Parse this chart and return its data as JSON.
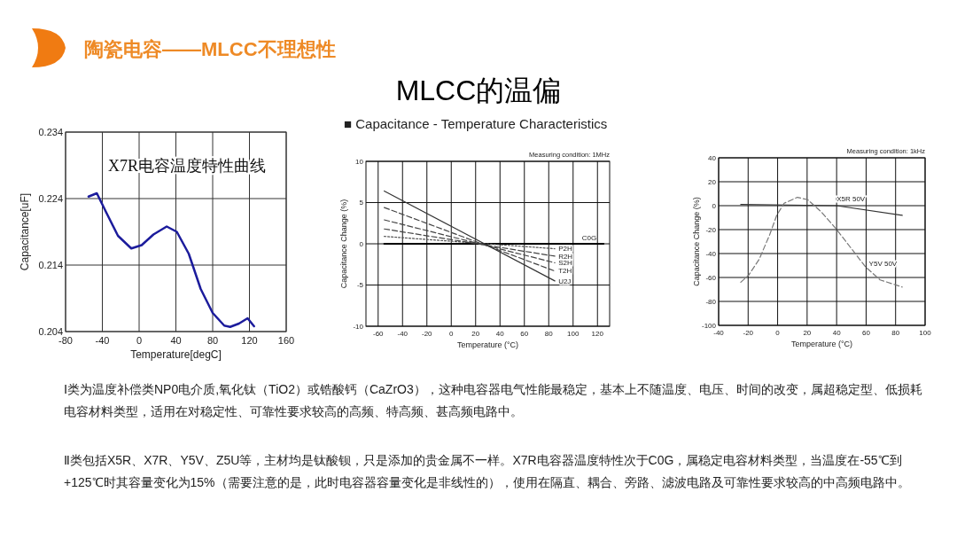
{
  "chart_data": [
    {
      "type": "other",
      "title": "陶瓷电容——MLCC不理想性",
      "subtitle": "MLCC的温偏"
    },
    {
      "type": "line",
      "title": "X7R电容温度特性曲线",
      "xlabel": "Temperature[degC]",
      "ylabel": "Capacitance[uF]",
      "color": "#1c1c9c",
      "x": [
        -55,
        -46,
        -35.7,
        -23,
        -8.5,
        2.8,
        15.6,
        30,
        41,
        54,
        67,
        80,
        92.6,
        99,
        108.6,
        118,
        125
      ],
      "values": [
        0.2243,
        0.2248,
        0.2219,
        0.2184,
        0.2165,
        0.217,
        0.2186,
        0.2198,
        0.219,
        0.2157,
        0.2104,
        0.2068,
        0.2049,
        0.2047,
        0.2052,
        0.206,
        0.2048
      ],
      "xlim": [
        -80,
        160
      ],
      "ylim": [
        0.204,
        0.234
      ],
      "xticks": [
        -80,
        -40,
        0,
        40,
        80,
        120,
        160
      ],
      "yticks": [
        0.204,
        0.214,
        0.224,
        0.234
      ],
      "grid": true
    },
    {
      "type": "line",
      "title": "■ Capacitance - Temperature Characteristics",
      "annotations": [
        "Measuring condition: 1MHz"
      ],
      "xlabel": "Temperature (°C)",
      "ylabel": "Capacitance Change (%)",
      "series": [
        {
          "name": "C0G",
          "color": "#000000",
          "line_style": "solid",
          "x": [
            -55,
            125
          ],
          "values": [
            0,
            0
          ]
        },
        {
          "name": "P2H",
          "color": "#555555",
          "line_style": "dotted",
          "x": [
            -55,
            85
          ],
          "values": [
            0.9,
            -0.6
          ]
        },
        {
          "name": "R2H",
          "color": "#444444",
          "line_style": "dashed",
          "x": [
            -55,
            85
          ],
          "values": [
            1.8,
            -1.5
          ]
        },
        {
          "name": "S2H",
          "color": "#444444",
          "line_style": "dashed",
          "x": [
            -55,
            85
          ],
          "values": [
            2.9,
            -2.3
          ]
        },
        {
          "name": "T2H",
          "color": "#444444",
          "line_style": "dashed",
          "x": [
            -55,
            85
          ],
          "values": [
            4.4,
            -3.3
          ]
        },
        {
          "name": "U2J",
          "color": "#333333",
          "line_style": "solid",
          "x": [
            -55,
            85
          ],
          "values": [
            6.4,
            -4.5
          ]
        }
      ],
      "xlim": [
        -70,
        130
      ],
      "ylim": [
        -10,
        10
      ],
      "xticks": [
        -60,
        -40,
        -20,
        0,
        20,
        40,
        60,
        80,
        100,
        120
      ],
      "yticks": [
        -10,
        -5,
        0,
        5,
        10
      ],
      "grid": true
    },
    {
      "type": "line",
      "annotations": [
        "Measuring condition: 1kHz"
      ],
      "xlabel": "Temperature (°C)",
      "ylabel": "Capacitance Change (%)",
      "series": [
        {
          "name": "X5R 50V",
          "color": "#333333",
          "line_style": "solid",
          "x": [
            -25,
            40,
            84.5
          ],
          "values": [
            1,
            0,
            -8
          ]
        },
        {
          "name": "Y5V 50V",
          "color": "#777777",
          "line_style": "dashed",
          "x": [
            -25,
            -19.6,
            -12.6,
            -5.6,
            -0.6,
            4.4,
            13.4,
            20.4,
            29.4,
            39.4,
            49.5,
            59.5,
            69.5,
            84.5
          ],
          "values": [
            -64,
            -58,
            -45,
            -25,
            -8,
            2,
            7,
            5,
            -5,
            -19,
            -35,
            -51,
            -62,
            -68
          ]
        }
      ],
      "xlim": [
        -40,
        100
      ],
      "ylim": [
        -100,
        40
      ],
      "xticks": [
        -40,
        -20,
        0,
        20,
        40,
        60,
        80,
        100
      ],
      "yticks": [
        -100,
        -80,
        -60,
        -40,
        -20,
        0,
        20,
        40
      ],
      "grid": true
    },
    {
      "type": "other",
      "annotations": [
        "Ⅰ类为温度补偿类NP0电介质,氧化钛（TiO2）或锆酸钙（CaZrO3），这种电容器电气性能最稳定，基本上不随温度、电压、时间的改变，属超稳定型、低损耗电容材料类型，适用在对稳定性、可靠性要求较高的高频、特高频、甚高频电路中。",
        "Ⅱ类包括X5R、X7R、Y5V、Z5U等，主材均是钛酸钡，只是添加的贵金属不一样。X7R电容器温度特性次于C0G，属稳定电容材料类型，当温度在-55℃到+125℃时其容量变化为15%（需要注意的是，此时电容器容量变化是非线性的），使用在隔直、耦合、旁路、滤波电路及可靠性要求较高的中高频电路中。"
      ]
    }
  ]
}
